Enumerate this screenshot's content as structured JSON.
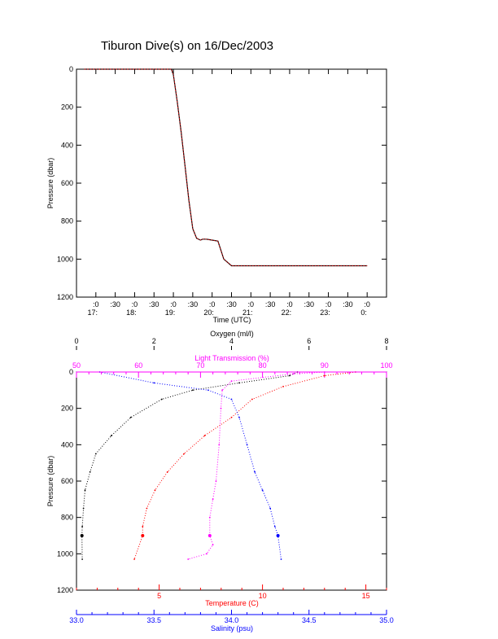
{
  "page": {
    "title": "Tiburon Dive(s) on 16/Dec/2003"
  },
  "colors": {
    "axis": "#000000",
    "depth_trace": "#000000",
    "depth_overlay": "#ff0000",
    "oxygen": "#000000",
    "light": "#ff00ff",
    "temperature": "#ff0000",
    "salinity": "#0000ff"
  },
  "chart_data": [
    {
      "type": "line",
      "title": "Tiburon Dive(s) on 16/Dec/2003",
      "xlabel": "Time (UTC)",
      "ylabel": "Pressure (dbar)",
      "xlim": [
        16.5,
        24.5
      ],
      "ylim": [
        1200,
        0
      ],
      "grid": false,
      "y_ticks": [
        "0",
        "200",
        "400",
        "600",
        "800",
        "1000",
        "1200"
      ],
      "x_ticks": [
        {
          "minor": ":0",
          "major": "17:"
        },
        {
          "minor": ":30",
          "major": ""
        },
        {
          "minor": ":0",
          "major": "18:"
        },
        {
          "minor": ":30",
          "major": ""
        },
        {
          "minor": ":0",
          "major": "19:"
        },
        {
          "minor": ":30",
          "major": ""
        },
        {
          "minor": ":0",
          "major": "20:"
        },
        {
          "minor": ":30",
          "major": ""
        },
        {
          "minor": ":0",
          "major": "21:"
        },
        {
          "minor": ":30",
          "major": ""
        },
        {
          "minor": ":0",
          "major": "22:"
        },
        {
          "minor": ":30",
          "major": ""
        },
        {
          "minor": ":0",
          "major": "23:"
        },
        {
          "minor": ":30",
          "major": ""
        },
        {
          "minor": ":0",
          "major": "0:"
        }
      ],
      "series": [
        {
          "x": [
            16.7,
            17.5,
            18.5,
            18.95,
            19.0,
            19.1,
            19.2,
            19.3,
            19.4,
            19.5,
            19.6,
            19.7,
            19.75,
            19.85,
            20.0,
            20.15,
            20.3,
            20.5,
            21.0,
            22.0,
            23.0,
            24.0
          ],
          "y": [
            0,
            0,
            0,
            0,
            30,
            170,
            330,
            510,
            690,
            840,
            890,
            900,
            895,
            895,
            900,
            905,
            1000,
            1035,
            1035,
            1035,
            1035,
            1035
          ]
        }
      ]
    },
    {
      "type": "scatter",
      "ylabel": "Pressure (dbar)",
      "ylim": [
        1200,
        0
      ],
      "y_ticks": [
        "0",
        "200",
        "400",
        "600",
        "800",
        "1000",
        "1200"
      ],
      "grid": false,
      "axes": {
        "oxygen": {
          "label": "Oxygen (ml/l)",
          "lim": [
            0,
            8
          ],
          "ticks": [
            "0",
            "2",
            "4",
            "6",
            "8"
          ]
        },
        "light": {
          "label": "Light Transmission (%)",
          "lim": [
            50,
            100
          ],
          "ticks": [
            "50",
            "60",
            "70",
            "80",
            "90",
            "100"
          ]
        },
        "temperature": {
          "label": "Temperature (C)",
          "lim": [
            1,
            16
          ],
          "ticks": [
            "5",
            "10",
            "15"
          ]
        },
        "salinity": {
          "label": "Salinity (psu)",
          "lim": [
            33.0,
            35.0
          ],
          "ticks": [
            "33.0",
            "33.5",
            "34.0",
            "34.5",
            "35.0"
          ]
        }
      },
      "series": [
        {
          "name": "Oxygen (ml/l)",
          "axis": "oxygen",
          "x": [
            5.7,
            5.5,
            4.2,
            3.0,
            2.2,
            1.4,
            0.9,
            0.5,
            0.35,
            0.22,
            0.18,
            0.15,
            0.14,
            0.15
          ],
          "y": [
            0,
            20,
            60,
            100,
            150,
            250,
            350,
            450,
            550,
            650,
            750,
            850,
            900,
            1030
          ]
        },
        {
          "name": "Light Transmission (%)",
          "axis": "light",
          "x": [
            90,
            85,
            75,
            73.5,
            73.3,
            73.0,
            72.5,
            72.0,
            71.5,
            71.5,
            72.0,
            71.0,
            68.0
          ],
          "y": [
            0,
            10,
            50,
            100,
            200,
            400,
            600,
            700,
            800,
            900,
            950,
            1000,
            1030
          ]
        },
        {
          "name": "Temperature (C)",
          "axis": "temperature",
          "x": [
            14.5,
            13.0,
            11.0,
            9.5,
            8.5,
            7.2,
            6.2,
            5.4,
            4.8,
            4.4,
            4.2,
            4.2,
            3.8
          ],
          "y": [
            0,
            20,
            80,
            150,
            250,
            350,
            450,
            550,
            650,
            750,
            850,
            900,
            1030
          ]
        },
        {
          "name": "Salinity (psu)",
          "axis": "salinity",
          "x": [
            33.15,
            33.5,
            33.85,
            34.0,
            34.05,
            34.1,
            34.15,
            34.2,
            34.25,
            34.28,
            34.3,
            34.32
          ],
          "y": [
            0,
            60,
            100,
            150,
            250,
            400,
            550,
            650,
            750,
            850,
            900,
            1030
          ]
        }
      ]
    }
  ]
}
